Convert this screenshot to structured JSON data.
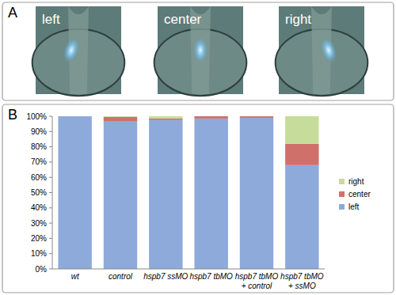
{
  "figure": {
    "panels": [
      {
        "label": "A",
        "images": [
          "left",
          "center",
          "right"
        ]
      },
      {
        "label": "B"
      }
    ]
  },
  "chart_data": {
    "type": "bar",
    "stacked": true,
    "categories": [
      "wt",
      "control",
      "hspb7 ssMO",
      "hspb7 tbMO",
      "hspb7 tbMO + control",
      "hspb7 tbMO + ssMO"
    ],
    "series": [
      {
        "name": "left",
        "color": "#8eaadb",
        "values": [
          100,
          96.5,
          97.5,
          98.5,
          99,
          68
        ]
      },
      {
        "name": "center",
        "color": "#d0706b",
        "values": [
          0,
          3,
          1,
          1.5,
          1,
          14
        ]
      },
      {
        "name": "right",
        "color": "#c6dc9a",
        "values": [
          0,
          0.5,
          1.5,
          0,
          0,
          18
        ]
      }
    ],
    "ylim": [
      0,
      100
    ],
    "yticks": [
      {
        "value": 0,
        "label": "0%"
      },
      {
        "value": 10,
        "label": "10%"
      },
      {
        "value": 20,
        "label": "20%"
      },
      {
        "value": 30,
        "label": "30%"
      },
      {
        "value": 40,
        "label": "40%"
      },
      {
        "value": 50,
        "label": "50%"
      },
      {
        "value": 60,
        "label": "60%"
      },
      {
        "value": 70,
        "label": "70%"
      },
      {
        "value": 80,
        "label": "80%"
      },
      {
        "value": 90,
        "label": "90%"
      },
      {
        "value": 100,
        "label": "100%"
      }
    ],
    "grid": false,
    "legend": "right"
  }
}
